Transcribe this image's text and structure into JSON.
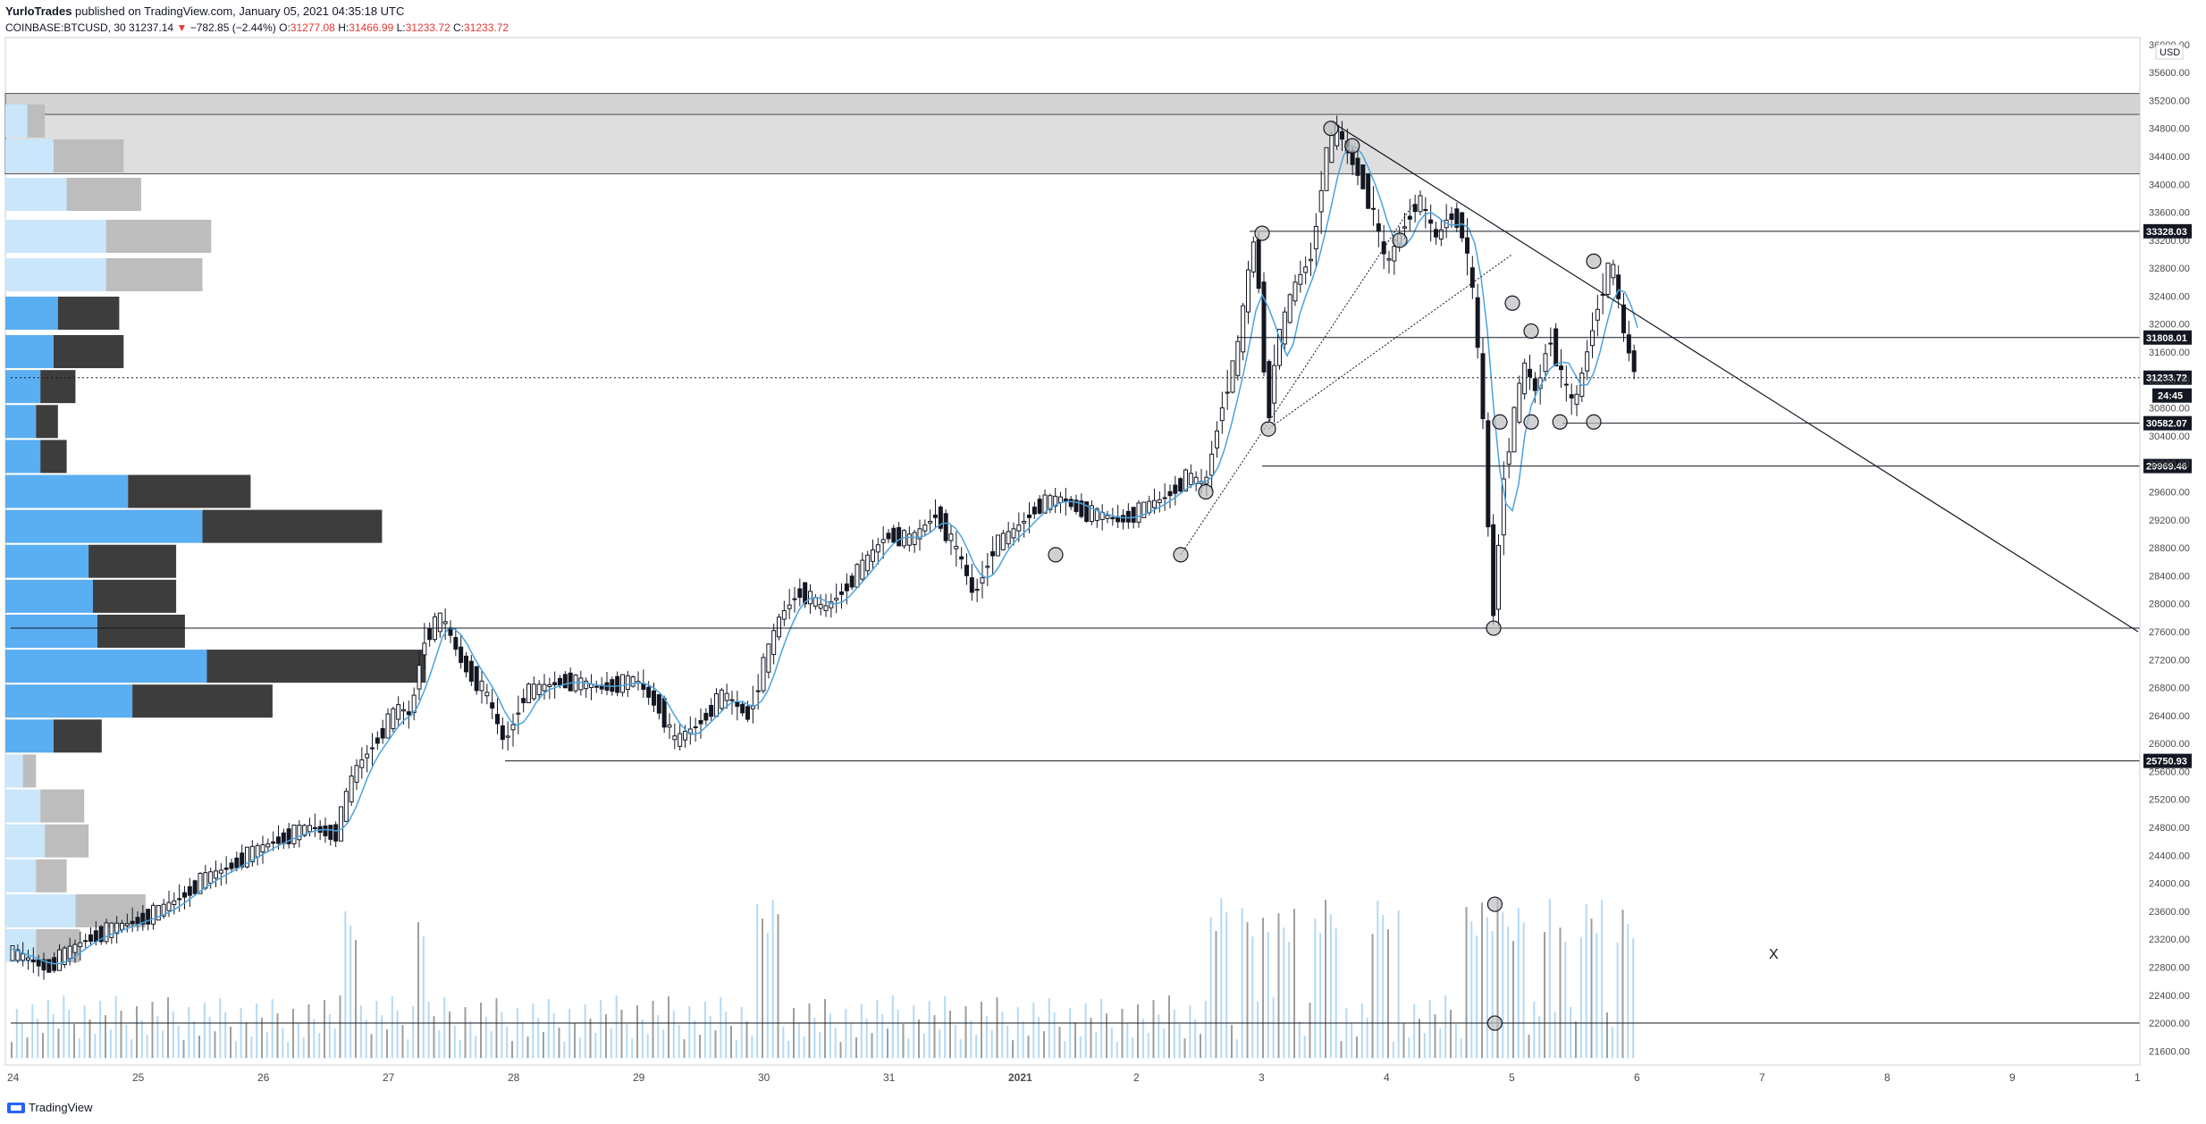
{
  "header": {
    "author": "YurloTrades",
    "published": "published on TradingView.com, January 05, 2021 04:35:18 UTC",
    "symbol": "COINBASE:BTCUSD, 30",
    "last": "31237.14",
    "change": "−782.85 (−2.44%)",
    "o_label": "O:",
    "o_val": "31277.08",
    "h_label": "H:",
    "h_val": "31466.99",
    "l_label": "L:",
    "l_val": "31233.72",
    "c_label": "C:",
    "c_val": "31233.72"
  },
  "footer": {
    "brand": "TradingView"
  },
  "annotation": {
    "text": "X"
  },
  "colors": {
    "up": "#131722",
    "ma": "#4aa3df",
    "vp_up": "#5aaef2",
    "vp_down": "#3d3d3d",
    "zone": "#d3d3d3"
  },
  "chart_data": {
    "type": "candlestick",
    "currency": "USD",
    "ylim": [
      21400,
      36100
    ],
    "y_ticks": [
      21600,
      22000,
      22400,
      22800,
      23200,
      23600,
      24000,
      24400,
      24800,
      25200,
      25600,
      26000,
      26400,
      26800,
      27200,
      27600,
      28000,
      28400,
      28800,
      29200,
      29600,
      30000,
      30400,
      30800,
      31200,
      31600,
      32000,
      32400,
      32800,
      33200,
      33600,
      34000,
      34400,
      34800,
      35200,
      35600,
      36000
    ],
    "x_ticks": [
      {
        "label": "24",
        "day": 0
      },
      {
        "label": "25",
        "day": 1
      },
      {
        "label": "26",
        "day": 2
      },
      {
        "label": "27",
        "day": 3
      },
      {
        "label": "28",
        "day": 4
      },
      {
        "label": "29",
        "day": 5
      },
      {
        "label": "30",
        "day": 6
      },
      {
        "label": "31",
        "day": 7
      },
      {
        "label": "2021",
        "day": 8
      },
      {
        "label": "2",
        "day": 9
      },
      {
        "label": "3",
        "day": 10
      },
      {
        "label": "4",
        "day": 11
      },
      {
        "label": "5",
        "day": 12
      },
      {
        "label": "6",
        "day": 13
      },
      {
        "label": "7",
        "day": 14
      },
      {
        "label": "8",
        "day": 15
      },
      {
        "label": "9",
        "day": 16
      },
      {
        "label": "1",
        "day": 17
      }
    ],
    "price_path": [
      [
        0.0,
        23000
      ],
      [
        0.3,
        22800
      ],
      [
        0.6,
        23200
      ],
      [
        0.9,
        23400
      ],
      [
        1.2,
        23600
      ],
      [
        1.5,
        24000
      ],
      [
        1.8,
        24300
      ],
      [
        2.1,
        24600
      ],
      [
        2.4,
        24800
      ],
      [
        2.6,
        24700
      ],
      [
        2.75,
        25600
      ],
      [
        2.9,
        26000
      ],
      [
        3.1,
        26500
      ],
      [
        3.2,
        26400
      ],
      [
        3.3,
        27500
      ],
      [
        3.45,
        27800
      ],
      [
        3.6,
        27200
      ],
      [
        3.8,
        26700
      ],
      [
        3.95,
        26000
      ],
      [
        4.1,
        26700
      ],
      [
        4.4,
        26900
      ],
      [
        4.7,
        26800
      ],
      [
        5.0,
        26900
      ],
      [
        5.2,
        26500
      ],
      [
        5.3,
        26000
      ],
      [
        5.5,
        26300
      ],
      [
        5.7,
        26700
      ],
      [
        5.9,
        26400
      ],
      [
        6.0,
        27000
      ],
      [
        6.15,
        27800
      ],
      [
        6.3,
        28200
      ],
      [
        6.5,
        27900
      ],
      [
        6.8,
        28500
      ],
      [
        7.0,
        29000
      ],
      [
        7.2,
        28900
      ],
      [
        7.4,
        29300
      ],
      [
        7.6,
        28600
      ],
      [
        7.7,
        28100
      ],
      [
        7.85,
        28800
      ],
      [
        8.0,
        29000
      ],
      [
        8.2,
        29400
      ],
      [
        8.4,
        29500
      ],
      [
        8.6,
        29300
      ],
      [
        8.85,
        29200
      ],
      [
        9.0,
        29300
      ],
      [
        9.2,
        29500
      ],
      [
        9.4,
        29800
      ],
      [
        9.55,
        29700
      ],
      [
        9.7,
        31000
      ],
      [
        9.8,
        31500
      ],
      [
        9.9,
        32800
      ],
      [
        9.95,
        33300
      ],
      [
        10.0,
        32000
      ],
      [
        10.05,
        30500
      ],
      [
        10.1,
        31500
      ],
      [
        10.25,
        32500
      ],
      [
        10.4,
        33000
      ],
      [
        10.5,
        34300
      ],
      [
        10.6,
        34800
      ],
      [
        10.7,
        34400
      ],
      [
        10.8,
        34100
      ],
      [
        10.9,
        33500
      ],
      [
        11.0,
        32800
      ],
      [
        11.1,
        33300
      ],
      [
        11.25,
        33800
      ],
      [
        11.4,
        33200
      ],
      [
        11.5,
        33600
      ],
      [
        11.6,
        33400
      ],
      [
        11.7,
        32300
      ],
      [
        11.78,
        30400
      ],
      [
        11.82,
        28800
      ],
      [
        11.86,
        27700
      ],
      [
        11.92,
        29700
      ],
      [
        12.0,
        30500
      ],
      [
        12.1,
        31400
      ],
      [
        12.2,
        31000
      ],
      [
        12.3,
        31900
      ],
      [
        12.4,
        31200
      ],
      [
        12.5,
        30800
      ],
      [
        12.6,
        31600
      ],
      [
        12.7,
        32400
      ],
      [
        12.8,
        32900
      ],
      [
        12.9,
        31800
      ],
      [
        13.0,
        31233
      ]
    ],
    "horizontal_levels": [
      {
        "price": 33328.03,
        "label": "33328.03",
        "from_day": 9.9
      },
      {
        "price": 31808.01,
        "label": "31808.01",
        "from_day": 9.8
      },
      {
        "price": 31233.72,
        "label": "31233.72",
        "dotted": true,
        "from_day": 0
      },
      {
        "price": 30582.07,
        "label": "30582.07",
        "from_day": 12.4
      },
      {
        "price": 29969.46,
        "label": "29969.46",
        "from_day": 10.0
      },
      {
        "price": 27650,
        "from_day": 0
      },
      {
        "price": 25750.93,
        "label": "25750.93",
        "from_day": 3.95
      },
      {
        "price": 22000,
        "from_day": 0
      }
    ],
    "countdown": "24:45",
    "resistance_zone": {
      "low": 34150,
      "high": 35000
    },
    "upper_band": {
      "low": 35000,
      "high": 35300
    },
    "trendline": {
      "start": [
        10.55,
        34900
      ],
      "end": [
        17.0,
        27600
      ]
    },
    "circles": [
      [
        10.55,
        34800
      ],
      [
        10.72,
        34550
      ],
      [
        10.0,
        33300
      ],
      [
        10.05,
        30500
      ],
      [
        9.55,
        29600
      ],
      [
        9.35,
        28700
      ],
      [
        8.35,
        28700
      ],
      [
        11.85,
        27650
      ],
      [
        11.9,
        30600
      ],
      [
        12.15,
        30600
      ],
      [
        12.38,
        30600
      ],
      [
        12.65,
        32900
      ],
      [
        12.65,
        30600
      ],
      [
        11.1,
        33200
      ],
      [
        12.15,
        31900
      ],
      [
        12.0,
        32300
      ]
    ],
    "volume_profile": [
      {
        "price": 34900,
        "up": 0.05,
        "down": 0.04
      },
      {
        "price": 34400,
        "up": 0.11,
        "down": 0.16
      },
      {
        "price": 33850,
        "up": 0.14,
        "down": 0.17
      },
      {
        "price": 33250,
        "up": 0.23,
        "down": 0.24
      },
      {
        "price": 32700,
        "up": 0.23,
        "down": 0.22
      },
      {
        "price": 32150,
        "up": 0.12,
        "down": 0.14
      },
      {
        "price": 31600,
        "up": 0.11,
        "down": 0.16
      },
      {
        "price": 31100,
        "up": 0.08,
        "down": 0.08
      },
      {
        "price": 30600,
        "up": 0.07,
        "down": 0.05
      },
      {
        "price": 30100,
        "up": 0.08,
        "down": 0.06
      },
      {
        "price": 29600,
        "up": 0.28,
        "down": 0.28
      },
      {
        "price": 29100,
        "up": 0.45,
        "down": 0.41
      },
      {
        "price": 28600,
        "up": 0.19,
        "down": 0.2
      },
      {
        "price": 28100,
        "up": 0.2,
        "down": 0.19
      },
      {
        "price": 27600,
        "up": 0.21,
        "down": 0.2
      },
      {
        "price": 27100,
        "up": 0.46,
        "down": 0.5
      },
      {
        "price": 26600,
        "up": 0.29,
        "down": 0.32
      },
      {
        "price": 26100,
        "up": 0.11,
        "down": 0.11
      },
      {
        "price": 25600,
        "up": 0.04,
        "down": 0.03
      },
      {
        "price": 25100,
        "up": 0.08,
        "down": 0.1
      },
      {
        "price": 24600,
        "up": 0.09,
        "down": 0.1
      },
      {
        "price": 24100,
        "up": 0.07,
        "down": 0.07
      },
      {
        "price": 23600,
        "up": 0.16,
        "down": 0.16
      },
      {
        "price": 23100,
        "up": 0.07,
        "down": 0.1
      }
    ]
  }
}
